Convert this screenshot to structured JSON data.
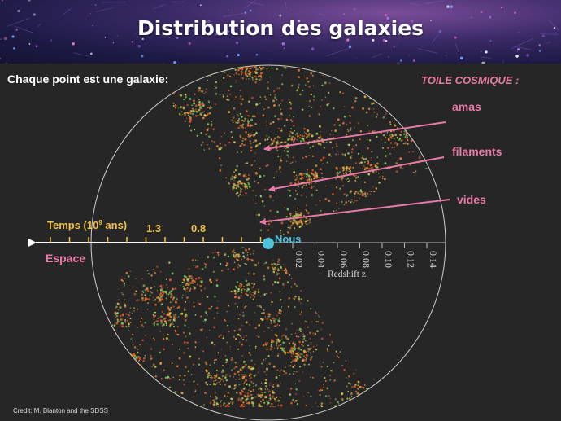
{
  "title": "Distribution des galaxies",
  "subtitle": "Chaque point est une galaxie:",
  "cosmic_web": "TOILE COSMIQUE :",
  "structures": [
    {
      "key": "amas",
      "label": "amas"
    },
    {
      "key": "filaments",
      "label": "filaments"
    },
    {
      "key": "vides",
      "label": "vides"
    }
  ],
  "time_axis": {
    "label_prefix": "Temps (10",
    "label_exp": "9",
    "label_suffix": " ans)",
    "ticks": [
      "1.3",
      "0.8"
    ]
  },
  "space_label": "Espace",
  "observer_label": "Nous",
  "redshift_axis": {
    "label": "Redshift z",
    "ticks": [
      "0.02",
      "0.04",
      "0.06",
      "0.08",
      "0.10",
      "0.12",
      "0.14"
    ]
  },
  "credit": "Credit: M. Blanton and the SDSS",
  "colors": {
    "accent_pink": "#ea7aa6",
    "time_yellow": "#f0c24a",
    "observer_cyan": "#4fc3dc",
    "galaxy_red": "#e85a2a",
    "galaxy_orange": "#e8a33a",
    "galaxy_green": "#7cd46a"
  }
}
